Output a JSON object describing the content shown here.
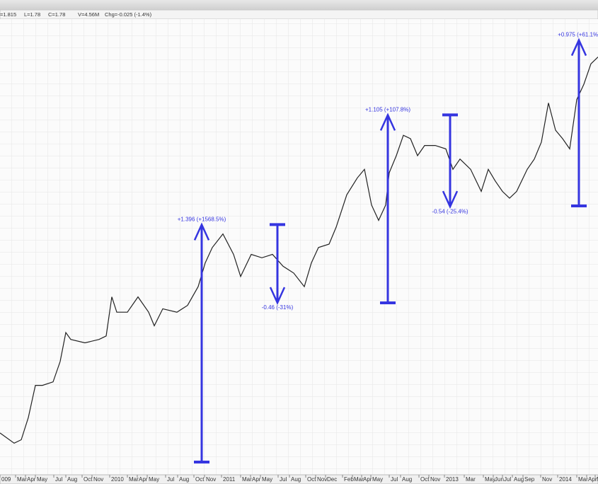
{
  "header": {
    "items": [
      "=1.815",
      "L=1.78",
      "C=1.78",
      "V=4.56M",
      "Chg=-0.025 (-1.4%)"
    ]
  },
  "chart_data": {
    "type": "line",
    "values": [
      0.26,
      0.2,
      0.22,
      0.35,
      0.54,
      0.54,
      0.56,
      0.68,
      0.85,
      0.81,
      0.79,
      0.81,
      0.83,
      1.06,
      0.97,
      0.97,
      1.06,
      0.97,
      0.89,
      0.99,
      0.97,
      1.01,
      1.12,
      1.26,
      1.35,
      1.43,
      1.31,
      1.18,
      1.31,
      1.29,
      1.31,
      1.24,
      1.2,
      1.12,
      1.26,
      1.35,
      1.37,
      1.47,
      1.66,
      1.76,
      1.81,
      1.6,
      1.51,
      1.6,
      1.79,
      1.89,
      2.01,
      1.99,
      1.89,
      1.95,
      1.95,
      1.93,
      1.81,
      1.87,
      1.81,
      1.68,
      1.81,
      1.74,
      1.68,
      1.64,
      1.68,
      1.81,
      1.87,
      1.97,
      2.2,
      2.04,
      1.99,
      1.93,
      2.22,
      2.31,
      2.43,
      2.47
    ],
    "color": "#222222",
    "ylim": [
      0.014,
      2.693
    ],
    "x_labels": [
      "009",
      "Mar",
      "Apr",
      "May",
      "Jul",
      "Aug",
      "Oct",
      "Nov",
      "2010",
      "Mar",
      "Apr",
      "May",
      "Jul",
      "Aug",
      "Oct",
      "Nov",
      "2011",
      "Mar",
      "Apr",
      "May",
      "Jul",
      "Aug",
      "Oct",
      "Nov",
      "Dec",
      "Feb",
      "Mar",
      "Apr",
      "May",
      "Jul",
      "Aug",
      "Oct",
      "Nov",
      "2013",
      "Mar",
      "May",
      "Jun",
      "Jul",
      "Aug",
      "Sep",
      "Nov",
      "2014",
      "Mar",
      "Apr",
      "M"
    ],
    "annotations": [
      {
        "text": "+1.396 (+1568.5%)",
        "from": 0.089,
        "to": 1.485
      },
      {
        "text": "-0.46 (-31%)",
        "from": 1.485,
        "to": 1.025
      },
      {
        "text": "+1.105 (+107.8%)",
        "from": 1.025,
        "to": 2.13
      },
      {
        "text": "-0.54 (-25.4%)",
        "from": 2.13,
        "to": 1.59
      },
      {
        "text": "+0.975 (+61.1%)",
        "from": 1.595,
        "to": 2.57
      }
    ],
    "annotation_color": "#3535e0"
  }
}
